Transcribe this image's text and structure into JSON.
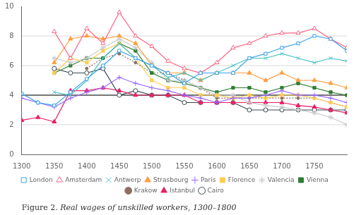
{
  "chart_data": {
    "type": "line",
    "title": "Figure 2.",
    "subtitle": "Real wages of unskilled workers, 1300–1800",
    "xlim": [
      1300,
      1800
    ],
    "xticks": [
      1300,
      1350,
      1400,
      1450,
      1500,
      1550,
      1600,
      1650,
      1700,
      1750
    ],
    "ylim": [
      0,
      10
    ],
    "yticks": [
      0,
      2,
      4,
      6,
      8,
      10
    ],
    "hlines": [
      2,
      4,
      6,
      8
    ],
    "reference_lines": [
      {
        "value": 4,
        "color": "#000000"
      }
    ],
    "legend": "bottom",
    "series": [
      {
        "name": "London",
        "color": "#36a2eb",
        "marker": "square_open",
        "line_style": "solid",
        "x": [
          1300,
          1325,
          1350,
          1375,
          1400,
          1425,
          1450,
          1475,
          1500,
          1525,
          1550,
          1575,
          1600,
          1625,
          1650,
          1675,
          1700,
          1725,
          1750,
          1775,
          1800
        ],
        "values": [
          4.1,
          3.5,
          3.3,
          4.2,
          5.1,
          6.0,
          7.0,
          6.5,
          6.0,
          5.5,
          4.8,
          5.5,
          5.5,
          5.5,
          6.5,
          6.8,
          7.2,
          7.5,
          8.0,
          7.8,
          7.0
        ]
      },
      {
        "name": "Amsterdam",
        "color": "#ff6384",
        "marker": "triangle_open",
        "line_style": "solid",
        "x": [
          1350,
          1375,
          1400,
          1425,
          1450,
          1475,
          1500,
          1525,
          1550,
          1575,
          1600,
          1625,
          1650,
          1675,
          1700,
          1725,
          1750,
          1775,
          1800
        ],
        "values": [
          8.3,
          6.5,
          8.5,
          7.5,
          9.6,
          8.0,
          7.3,
          6.3,
          5.8,
          5.5,
          6.2,
          7.2,
          7.5,
          8.0,
          8.2,
          8.2,
          8.5,
          7.8,
          7.2
        ]
      },
      {
        "name": "Antwerp",
        "color": "#4bc0c0",
        "marker": "x",
        "line_style": "solid",
        "x": [
          1350,
          1375,
          1400,
          1425,
          1450,
          1475,
          1500,
          1525,
          1550,
          1575,
          1600,
          1625,
          1650,
          1675,
          1700,
          1725,
          1750,
          1775,
          1800
        ],
        "values": [
          4.2,
          4.0,
          5.0,
          6.5,
          7.5,
          6.5,
          6.0,
          5.2,
          5.5,
          5.0,
          5.5,
          6.0,
          6.5,
          6.5,
          6.8,
          6.5,
          6.2,
          6.5,
          6.3
        ]
      },
      {
        "name": "Strasbourg",
        "color": "#ff9f40",
        "marker": "triangle",
        "line_style": "solid",
        "x": [
          1350,
          1375,
          1400,
          1425,
          1450,
          1475,
          1500,
          1525,
          1550,
          1575,
          1600,
          1625,
          1650,
          1675,
          1700,
          1725,
          1750,
          1775,
          1800
        ],
        "values": [
          6.2,
          7.8,
          8.0,
          7.8,
          8.0,
          7.5,
          6.0,
          5.5,
          5.5,
          5.0,
          5.5,
          5.5,
          5.5,
          5.0,
          5.5,
          5.0,
          5.0,
          4.8,
          4.5
        ]
      },
      {
        "name": "Paris",
        "color": "#9966ff",
        "marker": "plus",
        "line_style": "solid",
        "x": [
          1300,
          1325,
          1350,
          1375,
          1400,
          1425,
          1450,
          1475,
          1500,
          1525,
          1550,
          1575,
          1600,
          1625,
          1650,
          1675,
          1700,
          1725,
          1750,
          1775,
          1800
        ],
        "values": [
          3.8,
          3.5,
          3.2,
          3.8,
          4.2,
          4.5,
          5.2,
          4.8,
          4.5,
          4.3,
          4.0,
          3.8,
          3.5,
          3.8,
          3.8,
          4.0,
          4.3,
          4.0,
          4.0,
          3.8,
          3.5
        ]
      },
      {
        "name": "Florence",
        "color": "#ffcd56",
        "marker": "square",
        "line_style": "solid",
        "x": [
          1350,
          1375,
          1400,
          1425,
          1450,
          1475,
          1500,
          1525,
          1550,
          1575,
          1600,
          1625,
          1650,
          1675,
          1700,
          1725,
          1750,
          1775,
          1800
        ],
        "values": [
          5.5,
          6.5,
          6.2,
          7.0,
          7.5,
          6.5,
          5.0,
          4.5,
          4.5,
          4.0,
          4.0,
          3.8,
          4.0,
          3.8,
          4.0,
          4.0,
          3.8,
          3.5,
          3.2
        ]
      },
      {
        "name": "Valencia",
        "color": "#c9cbcf",
        "marker": "star",
        "line_style": "solid",
        "x": [
          1350,
          1375,
          1400,
          1425,
          1450,
          1475,
          1500,
          1525,
          1550,
          1575,
          1600,
          1625,
          1650,
          1675,
          1700,
          1725,
          1750,
          1775,
          1800
        ],
        "values": [
          6.5,
          6.2,
          6.5,
          7.2,
          7.8,
          7.2,
          6.2,
          5.0,
          5.0,
          4.5,
          4.0,
          4.0,
          3.5,
          3.3,
          3.2,
          3.0,
          2.8,
          2.5,
          2.0
        ]
      },
      {
        "name": "Vienna",
        "color": "#2e7d32",
        "marker": "square",
        "line_style": "solid",
        "x": [
          1350,
          1375,
          1400,
          1425,
          1450,
          1475,
          1500,
          1525,
          1550,
          1575,
          1600,
          1625,
          1650,
          1675,
          1700,
          1725,
          1750,
          1775,
          1800
        ],
        "values": [
          5.5,
          6.0,
          6.5,
          6.5,
          7.5,
          7.0,
          5.5,
          5.0,
          4.8,
          4.5,
          4.2,
          4.5,
          4.5,
          4.2,
          4.5,
          4.8,
          4.5,
          4.2,
          4.0
        ]
      },
      {
        "name": "Krakow",
        "color": "#8d6e63",
        "marker": "point",
        "line_style": "dotted",
        "x": [
          1400,
          1425,
          1450,
          1475,
          1500,
          1525,
          1550,
          1575,
          1600,
          1625,
          1650,
          1675,
          1700,
          1725,
          1750,
          1775,
          1800
        ],
        "values": [
          5.8,
          6.5,
          6.8,
          6.2,
          5.5,
          5.5,
          5.0,
          4.5,
          3.8,
          3.8,
          3.8,
          3.8,
          3.8,
          3.8,
          3.8,
          3.5,
          3.2
        ]
      },
      {
        "name": "Istanbul",
        "color": "#e91e63",
        "marker": "triangle",
        "line_style": "solid",
        "x": [
          1300,
          1325,
          1350,
          1375,
          1400,
          1425,
          1450,
          1475,
          1500,
          1525,
          1550,
          1575,
          1600,
          1625,
          1650,
          1675,
          1700,
          1725,
          1750,
          1775,
          1800
        ],
        "values": [
          2.3,
          2.5,
          2.2,
          4.3,
          4.3,
          4.5,
          4.3,
          4.0,
          4.0,
          4.0,
          4.0,
          3.5,
          3.5,
          3.5,
          3.5,
          3.5,
          3.5,
          3.3,
          3.2,
          3.0,
          2.8
        ]
      },
      {
        "name": "Cairo",
        "color": "#37474f",
        "marker": "circle_open",
        "line_style": "solid",
        "x": [
          1350,
          1375,
          1400,
          1425,
          1450,
          1475,
          1500,
          1525,
          1550,
          1575,
          1600,
          1625,
          1650,
          1675,
          1700,
          1725,
          1750,
          1775,
          1800
        ],
        "values": [
          5.8,
          5.5,
          5.5,
          5.8,
          4.0,
          4.3,
          4.0,
          4.0,
          3.5,
          3.5,
          3.5,
          3.5,
          3.0,
          3.0,
          3.0,
          3.0,
          3.0,
          3.0,
          3.0
        ]
      }
    ]
  }
}
